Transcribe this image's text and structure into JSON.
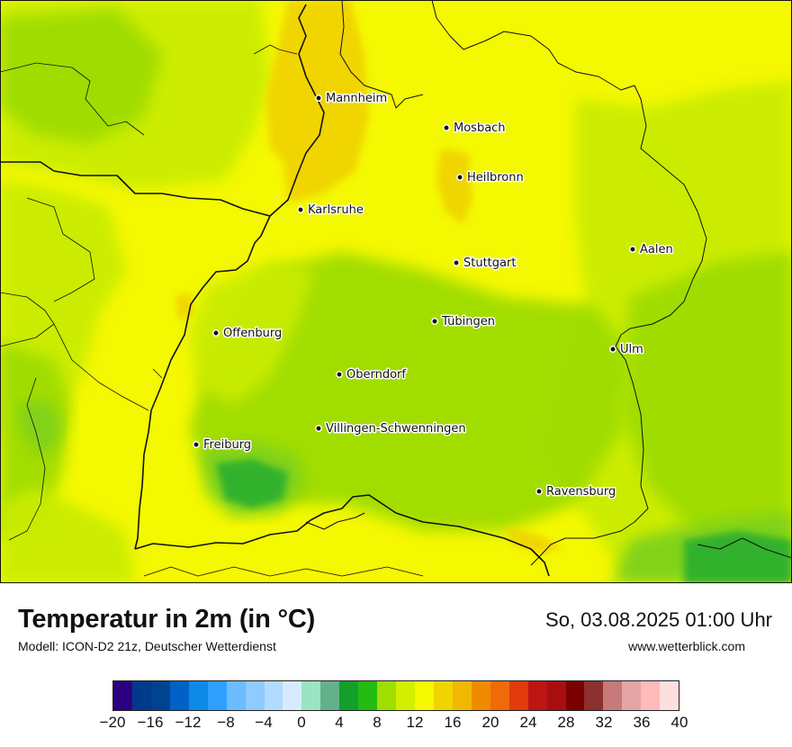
{
  "map": {
    "title": "Temperatur in 2m (in °C)",
    "model_info": "Modell: ICON-D2 21z, Deutscher Wetterdienst",
    "datetime": "So, 03.08.2025 01:00 Uhr",
    "website": "www.wetterblick.com",
    "region": "Baden-Württemberg",
    "cities": [
      {
        "name": "Mannheim"
      },
      {
        "name": "Mosbach"
      },
      {
        "name": "Heilbronn"
      },
      {
        "name": "Karlsruhe"
      },
      {
        "name": "Aalen"
      },
      {
        "name": "Stuttgart"
      },
      {
        "name": "Tübingen"
      },
      {
        "name": "Offenburg"
      },
      {
        "name": "Ulm"
      },
      {
        "name": "Oberndorf"
      },
      {
        "name": "Villingen-Schwenningen"
      },
      {
        "name": "Freiburg"
      },
      {
        "name": "Ravensburg"
      }
    ],
    "fill_colors": {
      "deep_green": "#2fb02f",
      "green": "#7fd11b",
      "light_green": "#9edc00",
      "yellow_green": "#c9ec00",
      "yellow": "#f4f800",
      "orange_yellow": "#f0d400"
    }
  },
  "legend": {
    "unit": "°C",
    "colors": [
      "#2a0080",
      "#003a8a",
      "#00438f",
      "#0062c7",
      "#0d8ae8",
      "#2fa0ff",
      "#6cbcff",
      "#8ecbff",
      "#b3daff",
      "#d6ebff",
      "#9be3c3",
      "#63b08b",
      "#13a02a",
      "#24bb14",
      "#a0dd00",
      "#d2ef00",
      "#f4f800",
      "#f0d400",
      "#f0b800",
      "#f08a00",
      "#f06a0a",
      "#e33a0a",
      "#bd1414",
      "#a80e0e",
      "#7a0000",
      "#8c3030",
      "#c67a7a",
      "#e3a5a5",
      "#ffbaba",
      "#ffdede"
    ],
    "ticks": [
      "−20",
      "−16",
      "−12",
      "−8",
      "−4",
      "0",
      "4",
      "8",
      "12",
      "16",
      "20",
      "24",
      "28",
      "32",
      "36",
      "40"
    ]
  }
}
